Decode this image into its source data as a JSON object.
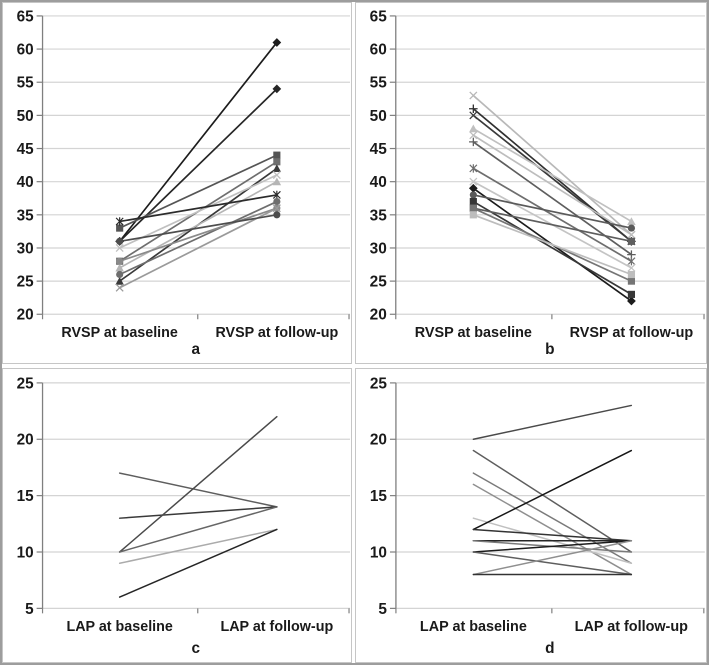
{
  "figure_title": "",
  "panel_letters": [
    "a",
    "b",
    "c",
    "d"
  ],
  "colors": {
    "background": "#ffffff",
    "gridline": "#d4d4d4",
    "axis": "#7f7f7f",
    "tick_label": "#1a1a1a",
    "outer_border": "#9d9d9d",
    "panel_border": "#c6c6c6"
  },
  "chart_data": [
    {
      "type": "line",
      "panel_label": "a",
      "categories": [
        "RVSP at baseline",
        "RVSP at follow-up"
      ],
      "xlabel": "",
      "ylabel": "",
      "ylim": [
        20,
        65
      ],
      "ytick_step": 5,
      "yticks": [
        20,
        25,
        30,
        35,
        40,
        45,
        50,
        55,
        60,
        65
      ],
      "grid": true,
      "legend": false,
      "series": [
        {
          "baseline": 31,
          "followup": 61,
          "marker": "diamond",
          "color": "#1c1c1c"
        },
        {
          "baseline": 31,
          "followup": 54,
          "marker": "diamond",
          "color": "#262626"
        },
        {
          "baseline": 33,
          "followup": 44,
          "marker": "square",
          "color": "#555555"
        },
        {
          "baseline": 28,
          "followup": 43,
          "marker": "square",
          "color": "#6e6e6e"
        },
        {
          "baseline": 25,
          "followup": 42,
          "marker": "triangle",
          "color": "#3a3a3a"
        },
        {
          "baseline": 30,
          "followup": 41,
          "marker": "x",
          "color": "#c0c0c0"
        },
        {
          "baseline": 27,
          "followup": 40,
          "marker": "triangle",
          "color": "#b5b5b5"
        },
        {
          "baseline": 34,
          "followup": 38,
          "marker": "asterisk",
          "color": "#2b2b2b"
        },
        {
          "baseline": 26,
          "followup": 37,
          "marker": "circle",
          "color": "#6e6e6e"
        },
        {
          "baseline": 28,
          "followup": 36,
          "marker": "circle",
          "color": "#8a8a8a"
        },
        {
          "baseline": 24,
          "followup": 36,
          "marker": "x",
          "color": "#9a9a9a"
        },
        {
          "baseline": 31,
          "followup": 35,
          "marker": "circle",
          "color": "#4d4d4d"
        }
      ]
    },
    {
      "type": "line",
      "panel_label": "b",
      "categories": [
        "RVSP at baseline",
        "RVSP at follow-up"
      ],
      "xlabel": "",
      "ylabel": "",
      "ylim": [
        20,
        65
      ],
      "ytick_step": 5,
      "yticks": [
        20,
        25,
        30,
        35,
        40,
        45,
        50,
        55,
        60,
        65
      ],
      "grid": true,
      "legend": false,
      "series": [
        {
          "baseline": 53,
          "followup": 32,
          "marker": "x",
          "color": "#b8b8b8"
        },
        {
          "baseline": 51,
          "followup": 31,
          "marker": "plus",
          "color": "#303030"
        },
        {
          "baseline": 50,
          "followup": 31,
          "marker": "x",
          "color": "#3a3a3a"
        },
        {
          "baseline": 48,
          "followup": 34,
          "marker": "triangle",
          "color": "#c0c0c0"
        },
        {
          "baseline": 47,
          "followup": 32,
          "marker": "x",
          "color": "#bdbdbd"
        },
        {
          "baseline": 46,
          "followup": 29,
          "marker": "plus",
          "color": "#5e5e5e"
        },
        {
          "baseline": 42,
          "followup": 28,
          "marker": "asterisk",
          "color": "#6e6e6e"
        },
        {
          "baseline": 40,
          "followup": 27,
          "marker": "x",
          "color": "#c4c4c4"
        },
        {
          "baseline": 39,
          "followup": 22,
          "marker": "diamond",
          "color": "#1c1c1c"
        },
        {
          "baseline": 38,
          "followup": 33,
          "marker": "circle",
          "color": "#5a5a5a"
        },
        {
          "baseline": 37,
          "followup": 23,
          "marker": "square",
          "color": "#383838"
        },
        {
          "baseline": 36,
          "followup": 31,
          "marker": "square",
          "color": "#5e5e5e"
        },
        {
          "baseline": 36,
          "followup": 25,
          "marker": "square",
          "color": "#757575"
        },
        {
          "baseline": 35,
          "followup": 26,
          "marker": "square",
          "color": "#bdbdbd"
        }
      ]
    },
    {
      "type": "line",
      "panel_label": "c",
      "categories": [
        "LAP at baseline",
        "LAP at follow-up"
      ],
      "xlabel": "",
      "ylabel": "",
      "ylim": [
        5,
        25
      ],
      "ytick_step": 5,
      "yticks": [
        5,
        10,
        15,
        20,
        25
      ],
      "grid": true,
      "legend": false,
      "series": [
        {
          "baseline": 17,
          "followup": 14,
          "marker": "none",
          "color": "#5e5e5e"
        },
        {
          "baseline": 13,
          "followup": 14,
          "marker": "none",
          "color": "#3a3a3a"
        },
        {
          "baseline": 10,
          "followup": 22,
          "marker": "none",
          "color": "#4a4a4a"
        },
        {
          "baseline": 10,
          "followup": 14,
          "marker": "none",
          "color": "#666666"
        },
        {
          "baseline": 9,
          "followup": 12,
          "marker": "none",
          "color": "#ababab"
        },
        {
          "baseline": 6,
          "followup": 12,
          "marker": "none",
          "color": "#262626"
        }
      ]
    },
    {
      "type": "line",
      "panel_label": "d",
      "categories": [
        "LAP at baseline",
        "LAP at follow-up"
      ],
      "xlabel": "",
      "ylabel": "",
      "ylim": [
        5,
        25
      ],
      "ytick_step": 5,
      "yticks": [
        5,
        10,
        15,
        20,
        25
      ],
      "grid": true,
      "legend": false,
      "series": [
        {
          "baseline": 20,
          "followup": 23,
          "marker": "none",
          "color": "#4a4a4a"
        },
        {
          "baseline": 19,
          "followup": 10,
          "marker": "none",
          "color": "#5e5e5e"
        },
        {
          "baseline": 17,
          "followup": 9,
          "marker": "none",
          "color": "#7a7a7a"
        },
        {
          "baseline": 16,
          "followup": 8,
          "marker": "none",
          "color": "#8f8f8f"
        },
        {
          "baseline": 13,
          "followup": 9,
          "marker": "none",
          "color": "#c0c0c0"
        },
        {
          "baseline": 12,
          "followup": 19,
          "marker": "none",
          "color": "#161616"
        },
        {
          "baseline": 12,
          "followup": 11,
          "marker": "none",
          "color": "#333333"
        },
        {
          "baseline": 11,
          "followup": 11,
          "marker": "none",
          "color": "#262626"
        },
        {
          "baseline": 11,
          "followup": 10,
          "marker": "none",
          "color": "#7a7a7a"
        },
        {
          "baseline": 10,
          "followup": 11,
          "marker": "none",
          "color": "#1c1c1c"
        },
        {
          "baseline": 10,
          "followup": 8,
          "marker": "none",
          "color": "#5e5e5e"
        },
        {
          "baseline": 8,
          "followup": 11,
          "marker": "none",
          "color": "#8f8f8f"
        },
        {
          "baseline": 8,
          "followup": 8,
          "marker": "none",
          "color": "#333333"
        }
      ]
    }
  ]
}
